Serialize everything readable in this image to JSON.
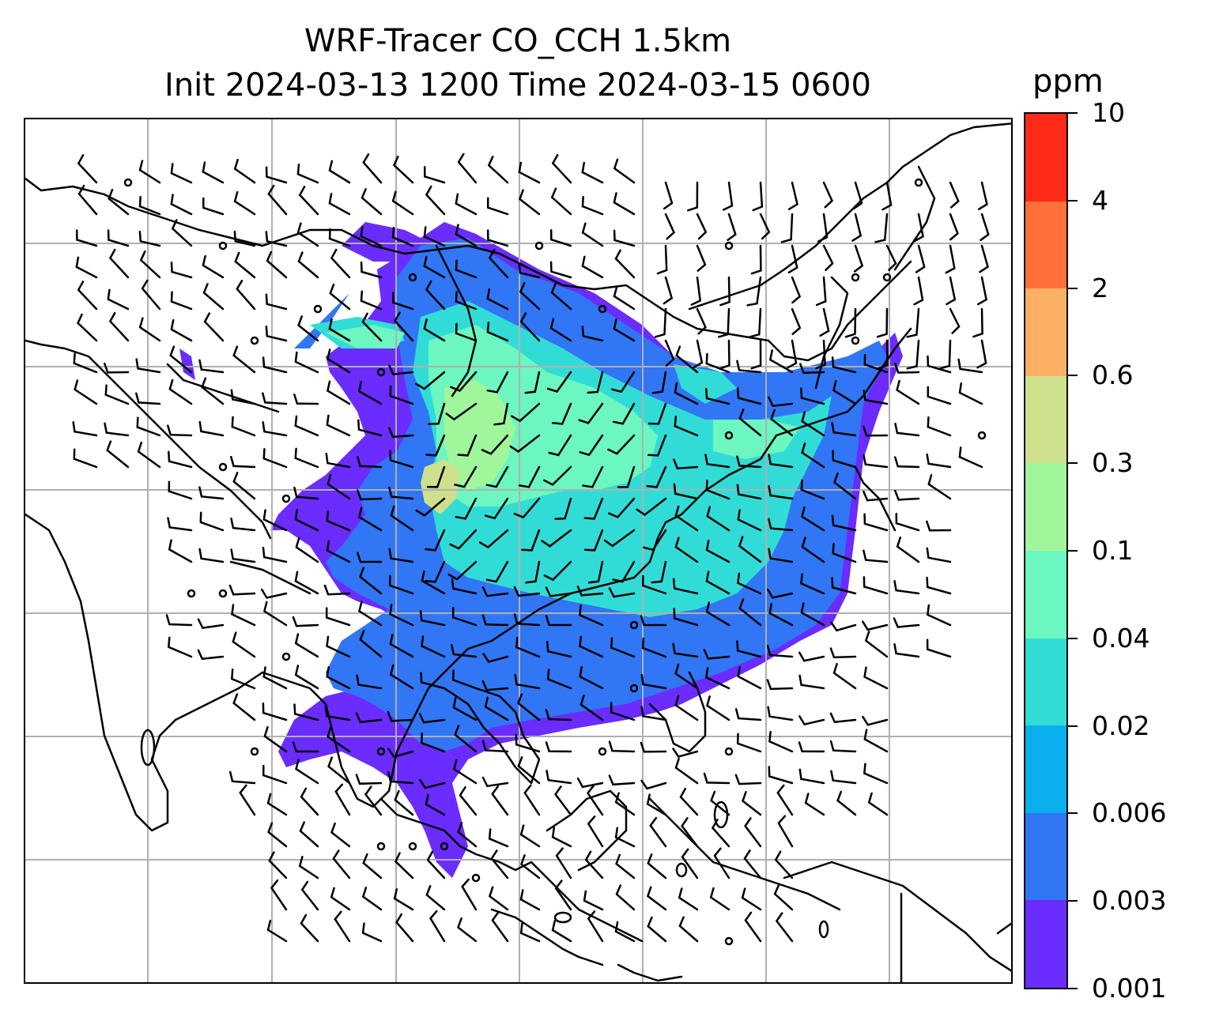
{
  "title": {
    "line1": "WRF-Tracer CO_CCH 1.5km",
    "line2": "Init 2024-03-13 1200 Time 2024-03-15 0600"
  },
  "colorbar": {
    "unit": "ppm",
    "tick_labels": [
      "0.001",
      "0.003",
      "0.006",
      "0.02",
      "0.04",
      "0.1",
      "0.3",
      "0.6",
      "2",
      "4",
      "10"
    ],
    "colors": [
      "#6a2cff",
      "#3176f5",
      "#0ab0ee",
      "#32dcd6",
      "#6cf6c0",
      "#a0f79b",
      "#cfe08c",
      "#fcb064",
      "#ff7039",
      "#ff2a18"
    ]
  },
  "map": {
    "field": "CO_CCH tracer concentration at 1.5km with wind barbs",
    "gridlines": true,
    "colors": {
      "coast": "#000000",
      "grid": "#b0b0b0",
      "barb": "#000000"
    }
  }
}
